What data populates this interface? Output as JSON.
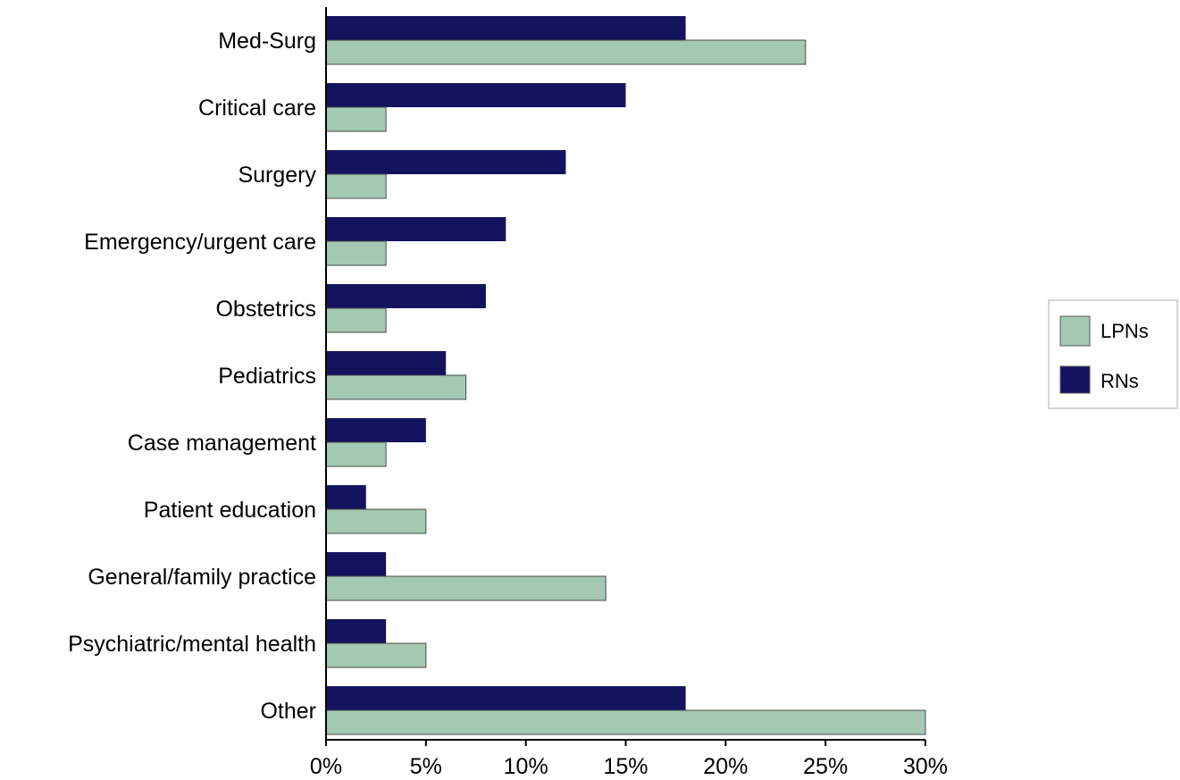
{
  "chart_data": {
    "type": "bar",
    "orientation": "horizontal",
    "title": "",
    "xlabel": "",
    "ylabel": "",
    "categories": [
      "Med-Surg",
      "Critical care",
      "Surgery",
      "Emergency/urgent care",
      "Obstetrics",
      "Pediatrics",
      "Case management",
      "Patient education",
      "General/family practice",
      "Psychiatric/mental health",
      "Other"
    ],
    "series": [
      {
        "name": "RNs",
        "color": "#13135e",
        "values": [
          18,
          15,
          12,
          9,
          8,
          6,
          5,
          2,
          3,
          3,
          18
        ]
      },
      {
        "name": "LPNs",
        "color": "#a3c9b2",
        "values": [
          24,
          3,
          3,
          3,
          3,
          7,
          3,
          5,
          14,
          5,
          30
        ]
      }
    ],
    "xlim": [
      0,
      30
    ],
    "xticks": [
      0,
      5,
      10,
      15,
      20,
      25,
      30
    ],
    "xtick_labels": [
      "0%",
      "5%",
      "10%",
      "15%",
      "20%",
      "25%",
      "30%"
    ],
    "grid": false,
    "legend": {
      "placement": "right",
      "entries": [
        "LPNs",
        "RNs"
      ]
    }
  }
}
